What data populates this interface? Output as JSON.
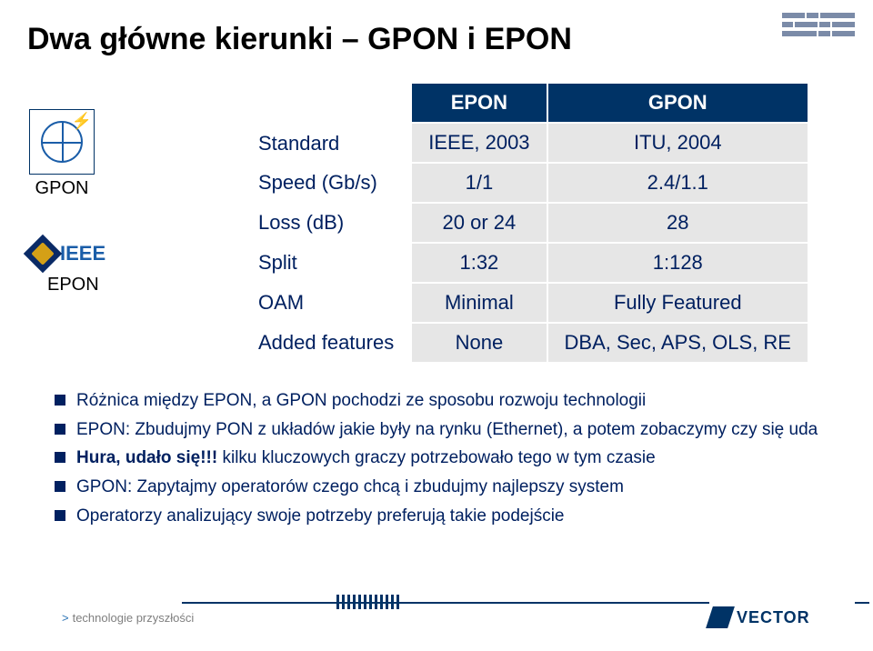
{
  "colors": {
    "title": "#000000",
    "accent": "#003366",
    "text_blue": "#002060",
    "table_header_bg": "#003366",
    "table_header_fg": "#ffffff",
    "table_cell_bg": "#e6e6e6",
    "table_cell_fg": "#002060",
    "footer_gray": "#7f7f7f",
    "ieee_blue": "#1a5da8"
  },
  "title": "Dwa główne kierunki – GPON i EPON",
  "logos": {
    "itu_caption": "GPON",
    "ieee_text": "IEEE",
    "ieee_caption": "EPON"
  },
  "table": {
    "header": [
      "",
      "EPON",
      "GPON"
    ],
    "rows": [
      {
        "label": "Standard",
        "epon": "IEEE, 2003",
        "gpon": "ITU, 2004"
      },
      {
        "label": "Speed (Gb/s)",
        "epon": "1/1",
        "gpon": "2.4/1.1"
      },
      {
        "label": "Loss (dB)",
        "epon": "20 or 24",
        "gpon": "28"
      },
      {
        "label": "Split",
        "epon": "1:32",
        "gpon": "1:128"
      },
      {
        "label": "OAM",
        "epon": "Minimal",
        "gpon": "Fully Featured"
      },
      {
        "label": "Added features",
        "epon": "None",
        "gpon": "DBA, Sec, APS, OLS, RE"
      }
    ]
  },
  "bullets": [
    {
      "text": "Różnica między EPON, a GPON pochodzi ze sposobu rozwoju technologii"
    },
    {
      "text": "EPON: Zbudujmy PON z układów jakie były na rynku (Ethernet), a potem zobaczymy czy się uda"
    },
    {
      "prefix_bold": "Hura, udało się!!!",
      "text": " kilku kluczowych graczy potrzebowało tego w tym czasie"
    },
    {
      "text": "GPON: Zapytajmy operatorów czego chcą i zbudujmy najlepszy system"
    },
    {
      "text": "Operatorzy analizujący swoje potrzeby preferują takie podejście"
    }
  ],
  "footer": {
    "caret": ">",
    "text": "technologie przyszłości",
    "vector": "VECTOR"
  }
}
